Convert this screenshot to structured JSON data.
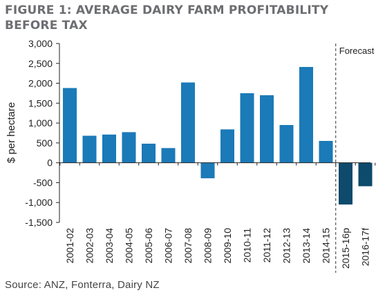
{
  "figure": {
    "title": "FIGURE 1: AVERAGE DAIRY FARM PROFITABILITY BEFORE TAX",
    "source": "Source: ANZ, Fonterra, Dairy NZ"
  },
  "colors": {
    "title": "#6d6e71",
    "actual_bar": "#1b7ab8",
    "forecast_bar": "#0d4a6b",
    "axis": "#222222",
    "forecast_divider": "#333333"
  },
  "chart_data": {
    "type": "bar",
    "title": "FIGURE 1: AVERAGE DAIRY FARM PROFITABILITY BEFORE TAX",
    "xlabel": "",
    "ylabel": "$ per hectare",
    "ylim": [
      -1500,
      3000
    ],
    "yticks": [
      -1500,
      -1000,
      -500,
      0,
      500,
      1000,
      1500,
      2000,
      2500,
      3000
    ],
    "ytick_labels": [
      "-1,500",
      "-1,000",
      "-500",
      "0",
      "500",
      "1,000",
      "1,500",
      "2,000",
      "2,500",
      "3,000"
    ],
    "grid": false,
    "legend": "none",
    "categories": [
      "2001-02",
      "2002-03",
      "2003-04",
      "2004-05",
      "2005-06",
      "2006-07",
      "2007-08",
      "2008-09",
      "2009-10",
      "2010-11",
      "2011-12",
      "2012-13",
      "2013-14",
      "2014-15",
      "2015-16p",
      "2016-17f"
    ],
    "values": [
      1880,
      680,
      710,
      770,
      480,
      370,
      2020,
      -390,
      840,
      1750,
      1700,
      950,
      2410,
      550,
      -1050,
      -590
    ],
    "forecast_from_index": 14,
    "forecast_label": "Forecast"
  }
}
